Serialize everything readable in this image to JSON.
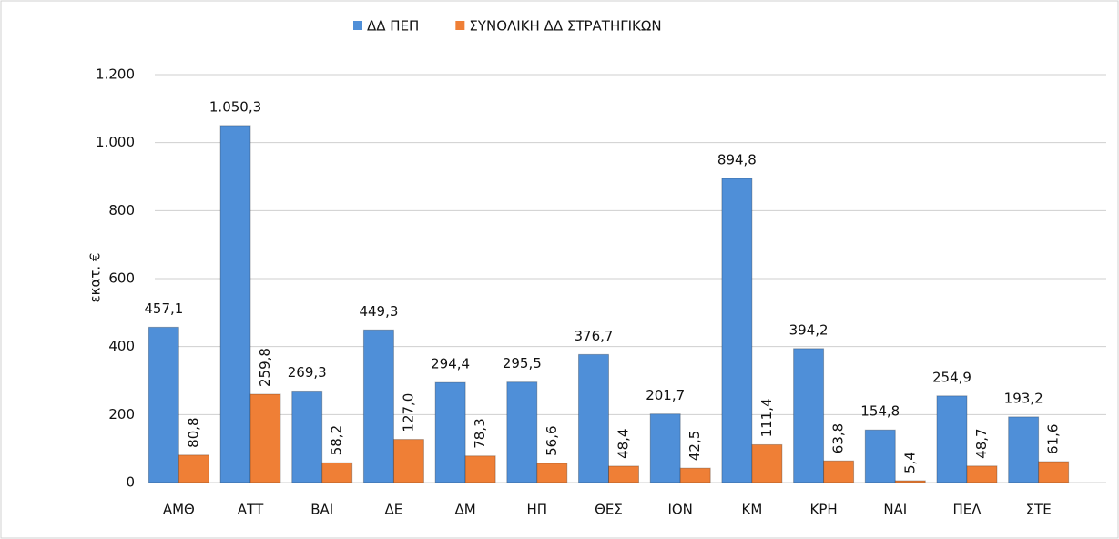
{
  "chart_data": {
    "type": "bar",
    "y_label": "εκατ. €",
    "categories": [
      "ΑΜΘ",
      "ΑΤΤ",
      "ΒΑΙ",
      "ΔΕ",
      "ΔΜ",
      "ΗΠ",
      "ΘΕΣ",
      "ΙΟΝ",
      "ΚΜ",
      "ΚΡΗ",
      "ΝΑΙ",
      "ΠΕΛ",
      "ΣΤΕ"
    ],
    "series": [
      {
        "name": "ΔΔ ΠΕΠ",
        "color": "#4f8fd8",
        "values": [
          457.1,
          1050.3,
          269.3,
          449.3,
          294.4,
          295.5,
          376.7,
          201.7,
          894.8,
          394.2,
          154.8,
          254.9,
          193.2
        ],
        "value_labels": [
          "457,1",
          "1.050,3",
          "269,3",
          "449,3",
          "294,4",
          "295,5",
          "376,7",
          "201,7",
          "894,8",
          "394,2",
          "154,8",
          "254,9",
          "193,2"
        ]
      },
      {
        "name": "ΣΥΝΟΛΙΚΗ ΔΔ ΣΤΡΑΤΗΓΙΚΩΝ",
        "color": "#ef7f36",
        "values": [
          80.8,
          259.8,
          58.2,
          127.0,
          78.3,
          56.6,
          48.4,
          42.5,
          111.4,
          63.8,
          5.4,
          48.7,
          61.6
        ],
        "value_labels": [
          "80,8",
          "259,8",
          "58,2",
          "127,0",
          "78,3",
          "56,6",
          "48,4",
          "42,5",
          "111,4",
          "63,8",
          "5,4",
          "48,7",
          "61,6"
        ]
      }
    ],
    "ylim": [
      0,
      1200
    ],
    "yticks": [
      0,
      200,
      400,
      600,
      800,
      {
        "value": 1000,
        "label": "1.000"
      },
      {
        "value": 1200,
        "label": "1.200"
      }
    ],
    "grid": true,
    "legend": "top"
  }
}
